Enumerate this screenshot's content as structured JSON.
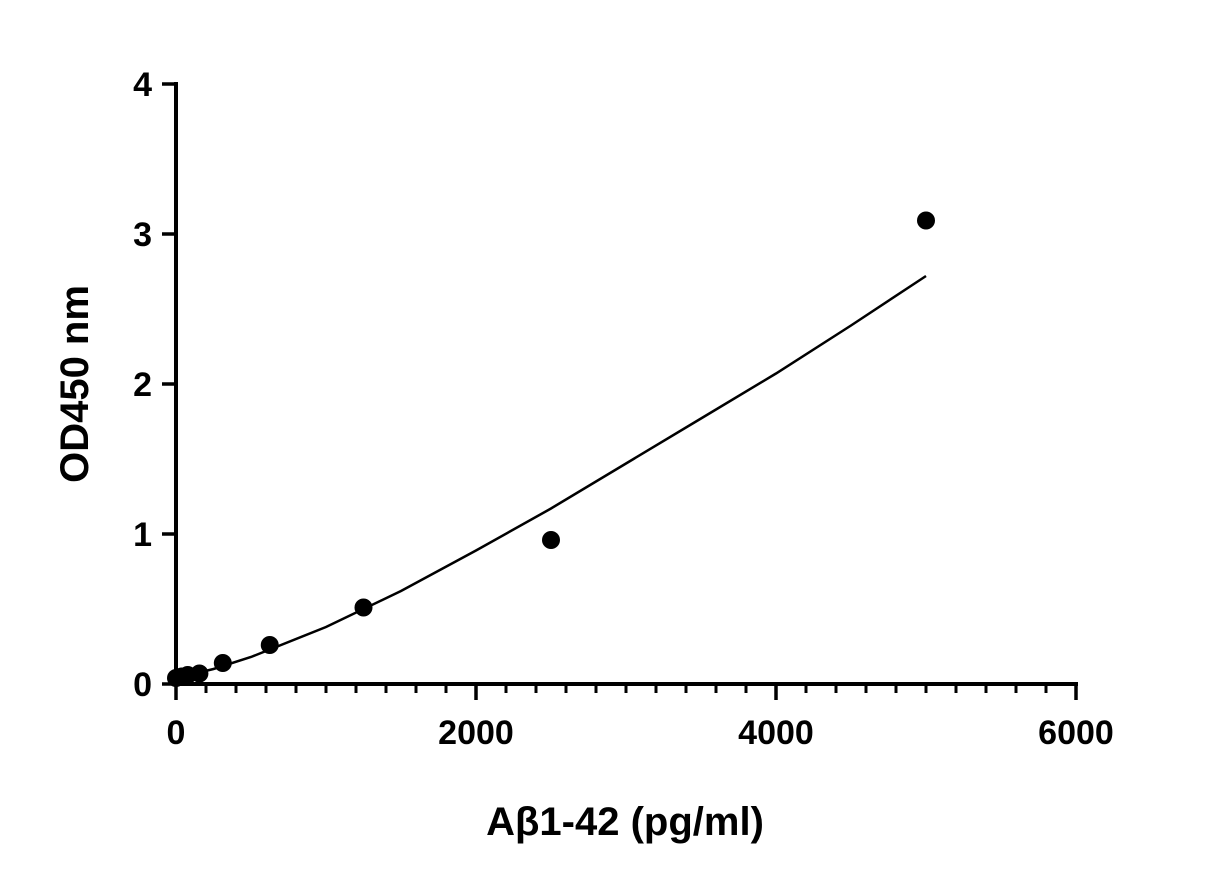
{
  "chart_data": {
    "type": "scatter",
    "xlabel": "Aβ1-42 (pg/ml)",
    "ylabel": "OD450 nm",
    "xlim": [
      0,
      6000
    ],
    "ylim": [
      0,
      4
    ],
    "x_ticks": [
      0,
      2000,
      4000,
      6000
    ],
    "y_ticks": [
      0,
      1,
      2,
      3,
      4
    ],
    "x_minor_step": 200,
    "grid": false,
    "points": [
      {
        "x": 0,
        "y": 0.04
      },
      {
        "x": 39,
        "y": 0.05
      },
      {
        "x": 78,
        "y": 0.06
      },
      {
        "x": 156,
        "y": 0.07
      },
      {
        "x": 312,
        "y": 0.14
      },
      {
        "x": 625,
        "y": 0.26
      },
      {
        "x": 1250,
        "y": 0.51
      },
      {
        "x": 2500,
        "y": 0.96
      },
      {
        "x": 5000,
        "y": 3.09
      }
    ],
    "fit_curve": [
      {
        "x": 0,
        "y": 0.04
      },
      {
        "x": 250,
        "y": 0.1
      },
      {
        "x": 500,
        "y": 0.18
      },
      {
        "x": 1000,
        "y": 0.38
      },
      {
        "x": 1500,
        "y": 0.62
      },
      {
        "x": 2000,
        "y": 0.89
      },
      {
        "x": 2500,
        "y": 1.17
      },
      {
        "x": 3000,
        "y": 1.47
      },
      {
        "x": 3500,
        "y": 1.77
      },
      {
        "x": 4000,
        "y": 2.07
      },
      {
        "x": 4500,
        "y": 2.39
      },
      {
        "x": 5000,
        "y": 2.72
      }
    ]
  }
}
